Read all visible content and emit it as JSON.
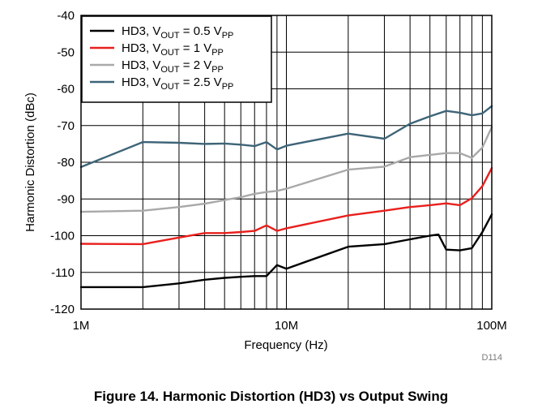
{
  "chart_data": {
    "type": "line",
    "xscale": "log",
    "xlim": [
      1,
      100
    ],
    "ylim": [
      -120,
      -40
    ],
    "yticks": [
      "-40",
      "-50",
      "-60",
      "-70",
      "-80",
      "-90",
      "-100",
      "-110",
      "-120"
    ],
    "xticks": [
      {
        "value": 1,
        "label": "1M"
      },
      {
        "value": 10,
        "label": "10M"
      },
      {
        "value": 100,
        "label": "100M"
      }
    ],
    "xlabel": "Frequency (Hz)",
    "ylabel": "Harmonic Distortion (dBc)",
    "grid": true,
    "legend_position": "top-left",
    "series": [
      {
        "name": "HD3, VOUT = 0.5 VPP",
        "label_main": "HD3, V",
        "label_sub1": "OUT",
        "label_mid": " = 0.5 V",
        "label_sub2": "PP",
        "color": "#000000",
        "x": [
          1,
          2,
          3,
          4,
          5,
          6,
          7,
          8,
          9,
          10,
          20,
          30,
          40,
          50,
          55,
          60,
          70,
          80,
          90,
          100
        ],
        "y": [
          -114,
          -114,
          -113,
          -112,
          -111.5,
          -111.2,
          -111,
          -111,
          -108,
          -109,
          -103,
          -102.3,
          -101,
          -100,
          -99.7,
          -103.8,
          -104,
          -103.4,
          -99,
          -94.2
        ]
      },
      {
        "name": "HD3, VOUT = 1 VPP",
        "label_main": "HD3, V",
        "label_sub1": "OUT",
        "label_mid": " = 1 V",
        "label_sub2": "PP",
        "color": "#e8201d",
        "x": [
          1,
          2,
          3,
          4,
          5,
          6,
          7,
          8,
          9,
          10,
          20,
          30,
          40,
          50,
          60,
          70,
          80,
          90,
          100
        ],
        "y": [
          -102.2,
          -102.3,
          -100.5,
          -99.3,
          -99.3,
          -99,
          -98.7,
          -97.2,
          -98.7,
          -98,
          -94.5,
          -93.2,
          -92.2,
          -91.7,
          -91.2,
          -91.7,
          -89.8,
          -86.5,
          -81.6
        ]
      },
      {
        "name": "HD3, VOUT = 2 VPP",
        "label_main": "HD3, V",
        "label_sub1": "OUT",
        "label_mid": " = 2 V",
        "label_sub2": "PP",
        "color": "#a9a9a9",
        "x": [
          1,
          2,
          3,
          4,
          5,
          6,
          7,
          8,
          9,
          10,
          20,
          30,
          40,
          50,
          60,
          70,
          80,
          90,
          100
        ],
        "y": [
          -93.5,
          -93.2,
          -92.2,
          -91.3,
          -90.3,
          -89.5,
          -88.6,
          -88.1,
          -87.8,
          -87.2,
          -82,
          -81.2,
          -78.6,
          -78,
          -77.5,
          -77.5,
          -78.8,
          -76,
          -70.4
        ]
      },
      {
        "name": "HD3, VOUT = 2.5 VPP",
        "label_main": "HD3, V",
        "label_sub1": "OUT",
        "label_mid": " = 2.5 V",
        "label_sub2": "PP",
        "color": "#3e6478",
        "x": [
          1,
          2,
          3,
          4,
          5,
          6,
          7,
          8,
          9,
          10,
          20,
          30,
          40,
          50,
          60,
          70,
          80,
          90,
          100
        ],
        "y": [
          -81.3,
          -74.5,
          -74.7,
          -75,
          -74.9,
          -75.2,
          -75.6,
          -74.5,
          -76.5,
          -75.5,
          -72.2,
          -73.6,
          -69.5,
          -67.5,
          -66,
          -66.5,
          -67.2,
          -66.7,
          -64.7
        ]
      }
    ],
    "code_label": "D114",
    "caption": "Figure 14. Harmonic Distortion (HD3) vs Output Swing"
  }
}
